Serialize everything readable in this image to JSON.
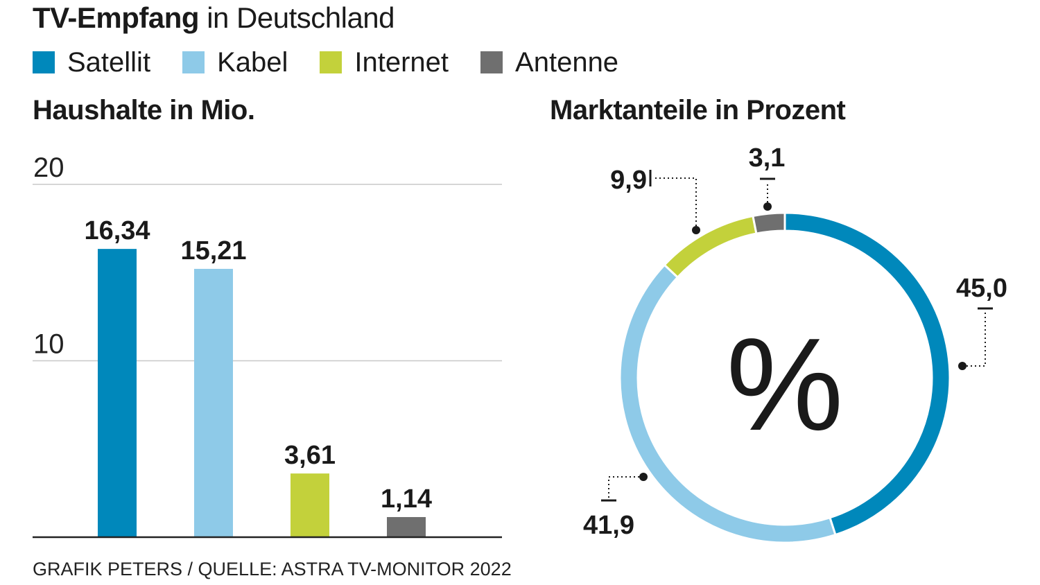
{
  "title": {
    "bold": "TV-Empfang",
    "rest": "in Deutschland"
  },
  "legend": [
    {
      "label": "Satellit",
      "color": "#0088bb"
    },
    {
      "label": "Kabel",
      "color": "#8ecae8"
    },
    {
      "label": "Internet",
      "color": "#c3d13b"
    },
    {
      "label": "Antenne",
      "color": "#6f6f6f"
    }
  ],
  "source": "GRAFIK PETERS / QUELLE: ASTRA TV-MONITOR 2022",
  "chart_data": [
    {
      "type": "bar",
      "title": "Haushalte in Mio.",
      "categories": [
        "Satellit",
        "Kabel",
        "Internet",
        "Antenne"
      ],
      "values": [
        16.34,
        15.21,
        3.61,
        1.14
      ],
      "value_labels": [
        "16,34",
        "15,21",
        "3,61",
        "1,14"
      ],
      "colors": [
        "#0088bb",
        "#8ecae8",
        "#c3d13b",
        "#6f6f6f"
      ],
      "ylim": [
        0,
        20
      ],
      "yticks": [
        10,
        20
      ],
      "ytick_labels": [
        "10",
        "20"
      ],
      "grid": true
    },
    {
      "type": "pie",
      "subtype": "donut",
      "title": "Marktanteile in Prozent",
      "center_label": "%",
      "categories": [
        "Satellit",
        "Kabel",
        "Internet",
        "Antenne"
      ],
      "values": [
        45.0,
        41.9,
        9.9,
        3.1
      ],
      "value_labels": [
        "45,0",
        "41,9",
        "9,9",
        "3,1"
      ],
      "colors": [
        "#0088bb",
        "#8ecae8",
        "#c3d13b",
        "#6f6f6f"
      ]
    }
  ]
}
